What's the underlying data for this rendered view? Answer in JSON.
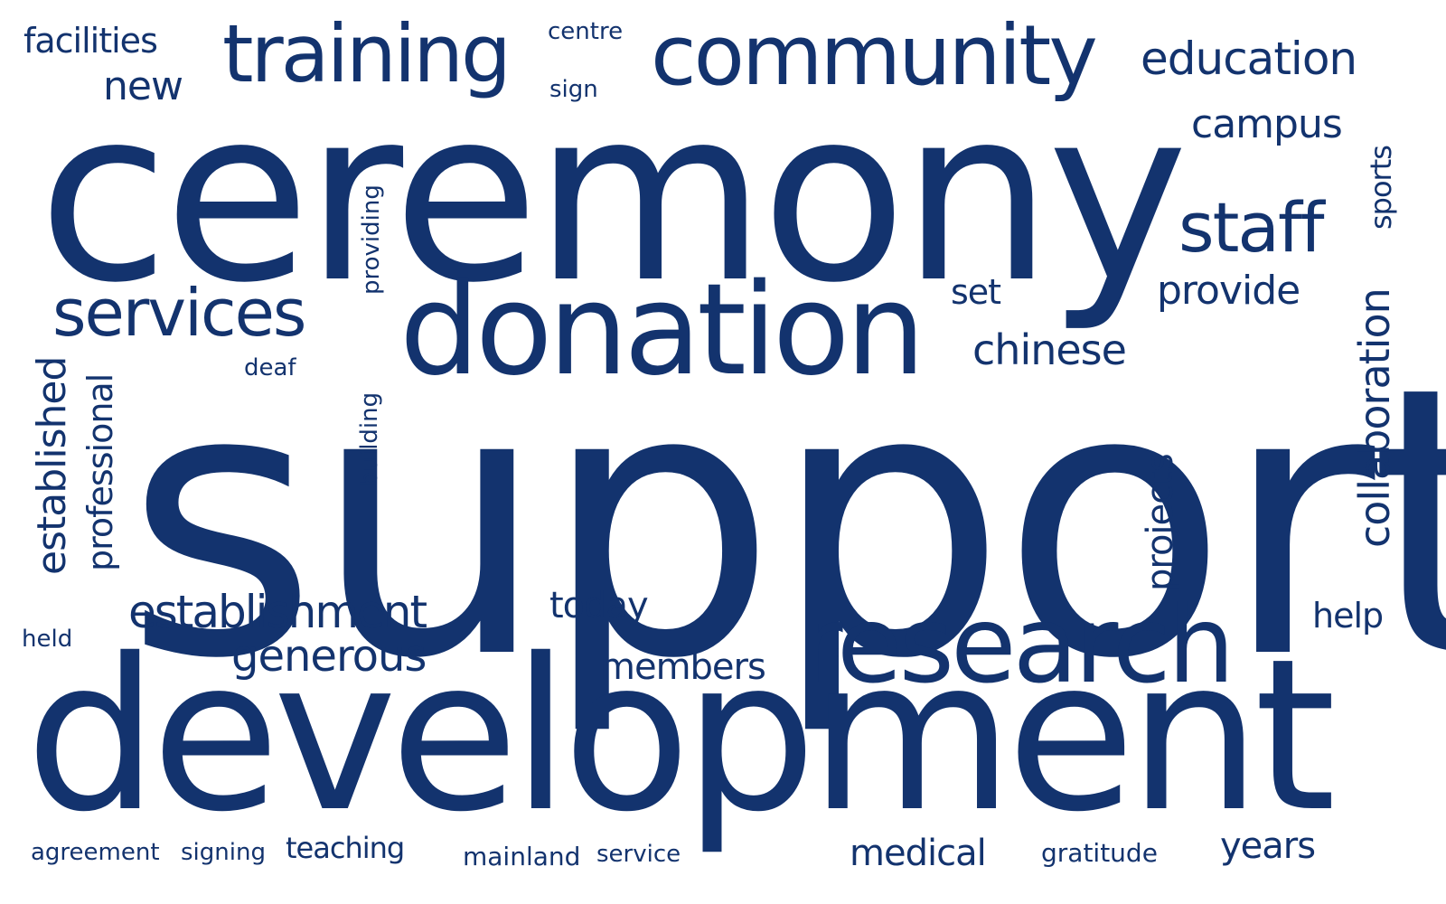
{
  "colors": {
    "text": "#13336e",
    "background": "#ffffff"
  },
  "words": [
    {
      "id": "support",
      "text": "support",
      "vertical": false
    },
    {
      "id": "ceremony",
      "text": "ceremony",
      "vertical": false
    },
    {
      "id": "development",
      "text": "development",
      "vertical": false
    },
    {
      "id": "donation",
      "text": "donation",
      "vertical": false
    },
    {
      "id": "research",
      "text": "research",
      "vertical": false
    },
    {
      "id": "community",
      "text": "community",
      "vertical": false
    },
    {
      "id": "training",
      "text": "training",
      "vertical": false
    },
    {
      "id": "services",
      "text": "services",
      "vertical": false
    },
    {
      "id": "staff",
      "text": "staff",
      "vertical": false
    },
    {
      "id": "establishment",
      "text": "establishment",
      "vertical": false
    },
    {
      "id": "education",
      "text": "education",
      "vertical": false
    },
    {
      "id": "collaboration",
      "text": "collaboration",
      "vertical": true
    },
    {
      "id": "generous",
      "text": "generous",
      "vertical": false
    },
    {
      "id": "chinese",
      "text": "chinese",
      "vertical": false
    },
    {
      "id": "established",
      "text": "established",
      "vertical": true
    },
    {
      "id": "provide",
      "text": "provide",
      "vertical": false
    },
    {
      "id": "campus",
      "text": "campus",
      "vertical": false
    },
    {
      "id": "facilities",
      "text": "facilities",
      "vertical": false
    },
    {
      "id": "members",
      "text": "members",
      "vertical": false
    },
    {
      "id": "medical",
      "text": "medical",
      "vertical": false
    },
    {
      "id": "professional",
      "text": "professional",
      "vertical": true
    },
    {
      "id": "today",
      "text": "today",
      "vertical": false
    },
    {
      "id": "new",
      "text": "new",
      "vertical": false
    },
    {
      "id": "projects",
      "text": "projects",
      "vertical": true
    },
    {
      "id": "years",
      "text": "years",
      "vertical": false
    },
    {
      "id": "help",
      "text": "help",
      "vertical": false
    },
    {
      "id": "set",
      "text": "set",
      "vertical": false
    },
    {
      "id": "teaching",
      "text": "teaching",
      "vertical": false
    },
    {
      "id": "sports",
      "text": "sports",
      "vertical": true
    },
    {
      "id": "agreement",
      "text": "agreement",
      "vertical": false
    },
    {
      "id": "mainland",
      "text": "mainland",
      "vertical": false
    },
    {
      "id": "gratitude",
      "text": "gratitude",
      "vertical": false
    },
    {
      "id": "providing",
      "text": "providing",
      "vertical": true
    },
    {
      "id": "building",
      "text": "building",
      "vertical": true
    },
    {
      "id": "signing",
      "text": "signing",
      "vertical": false
    },
    {
      "id": "service",
      "text": "service",
      "vertical": false
    },
    {
      "id": "centre",
      "text": "centre",
      "vertical": false
    },
    {
      "id": "sign",
      "text": "sign",
      "vertical": false
    },
    {
      "id": "deaf",
      "text": "deaf",
      "vertical": false
    },
    {
      "id": "held",
      "text": "held",
      "vertical": false
    }
  ]
}
